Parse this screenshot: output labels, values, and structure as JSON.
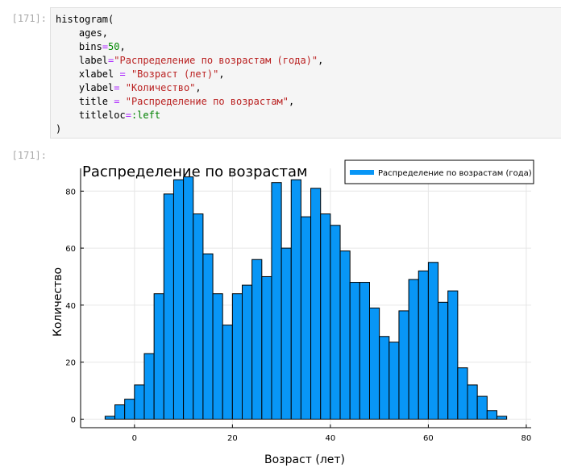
{
  "notebook": {
    "input_prompt": "[171]:",
    "output_prompt": "[171]:",
    "code": {
      "func": "histogram",
      "open": "(",
      "close": ")",
      "arg_ages": "ages,",
      "kw_bins": "bins",
      "eq": "=",
      "val_bins": "50",
      "comma": ",",
      "kw_label": "label",
      "val_label": "\"Распределение по возрастам (года)\"",
      "kw_xlabel": "xlabel",
      "eq_spaced": " = ",
      "val_xlabel": "\"Возраст (лет)\"",
      "kw_ylabel": "ylabel",
      "eq_left": "= ",
      "val_ylabel": "\"Количество\"",
      "kw_title": "title",
      "val_title": "\"Распределение по возрастам\"",
      "kw_titleloc": "titleloc",
      "val_titleloc": ":left"
    }
  },
  "chart_data": {
    "type": "bar",
    "title": "Распределение по возрастам",
    "xlabel": "Возраст (лет)",
    "ylabel": "Количество",
    "legend": {
      "label": "Распределение по возрастам (года)",
      "position": "top-right"
    },
    "bin_width": 2,
    "bin_starts": [
      -6,
      -4,
      -2,
      0,
      2,
      4,
      6,
      8,
      10,
      12,
      14,
      16,
      18,
      20,
      22,
      24,
      26,
      28,
      30,
      32,
      34,
      36,
      38,
      40,
      42,
      44,
      46,
      48,
      50,
      52,
      54,
      56,
      58,
      60,
      62,
      64,
      66,
      68,
      70,
      72,
      74
    ],
    "values": [
      1,
      5,
      7,
      12,
      23,
      44,
      79,
      84,
      85,
      72,
      58,
      44,
      33,
      44,
      47,
      56,
      50,
      83,
      60,
      84,
      71,
      81,
      72,
      68,
      59,
      48,
      48,
      39,
      29,
      27,
      38,
      49,
      52,
      55,
      41,
      45,
      18,
      12,
      8,
      3,
      1
    ],
    "xlim": [
      -11,
      81
    ],
    "ylim": [
      -3,
      88
    ],
    "xticks": [
      0,
      20,
      40,
      60,
      80
    ],
    "yticks": [
      0,
      20,
      40,
      60,
      80
    ],
    "xtick_labels": [
      "0",
      "20",
      "40",
      "60",
      "80"
    ],
    "ytick_labels": [
      "0",
      "20",
      "40",
      "60",
      "80"
    ],
    "grid": true,
    "bar_color": "#0896f6",
    "edge_color": "#000000"
  }
}
